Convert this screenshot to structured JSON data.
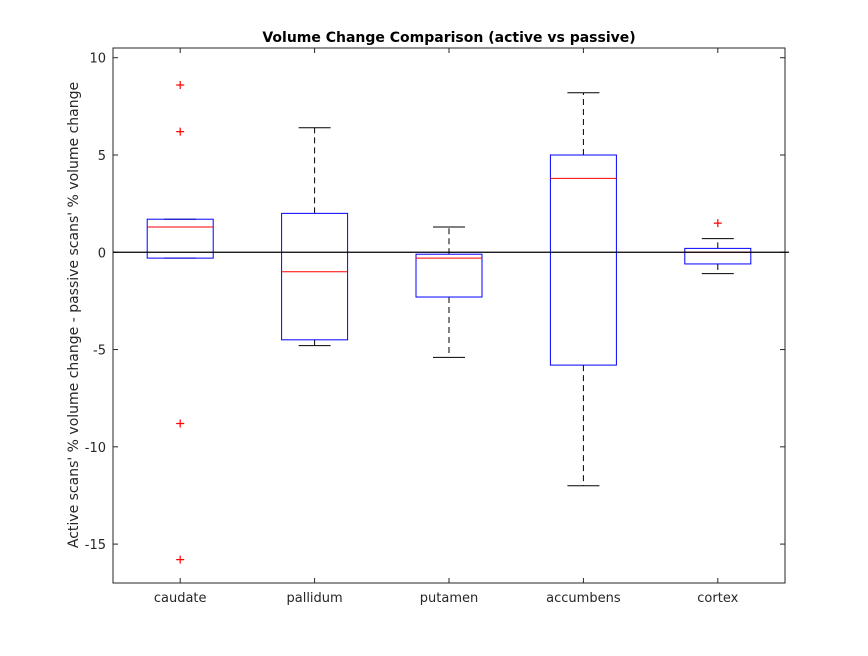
{
  "chart_data": {
    "type": "box",
    "title": "Volume Change Comparison (active vs passive)",
    "xlabel": "",
    "ylabel": "Active scans' % volume change - passive scans' % volume change",
    "ylim": [
      -17,
      10.5
    ],
    "yticks": [
      10,
      5,
      0,
      -5,
      -10,
      -15
    ],
    "grid": false,
    "reference_line_y": 0,
    "categories": [
      "caudate",
      "pallidum",
      "putamen",
      "accumbens",
      "cortex"
    ],
    "boxes": [
      {
        "category": "caudate",
        "whisker_low": -0.3,
        "q1": -0.3,
        "median": 1.3,
        "q3": 1.7,
        "whisker_high": 1.7,
        "outliers": [
          8.6,
          6.2,
          -8.8,
          -15.8
        ]
      },
      {
        "category": "pallidum",
        "whisker_low": -4.8,
        "q1": -4.5,
        "median": -1.0,
        "q3": 2.0,
        "whisker_high": 6.4,
        "outliers": []
      },
      {
        "category": "putamen",
        "whisker_low": -5.4,
        "q1": -2.3,
        "median": -0.3,
        "q3": -0.1,
        "whisker_high": 1.3,
        "outliers": []
      },
      {
        "category": "accumbens",
        "whisker_low": -12.0,
        "q1": -5.8,
        "median": 3.8,
        "q3": 5.0,
        "whisker_high": 8.2,
        "outliers": []
      },
      {
        "category": "cortex",
        "whisker_low": -1.1,
        "q1": -0.6,
        "median": 0.0,
        "q3": 0.2,
        "whisker_high": 0.7,
        "outliers": [
          1.5
        ]
      }
    ],
    "colors": {
      "box": "#0000ff",
      "median": "#ff0000",
      "whisker": "#000000",
      "outlier": "#ff0000",
      "reference": "#000000"
    }
  }
}
